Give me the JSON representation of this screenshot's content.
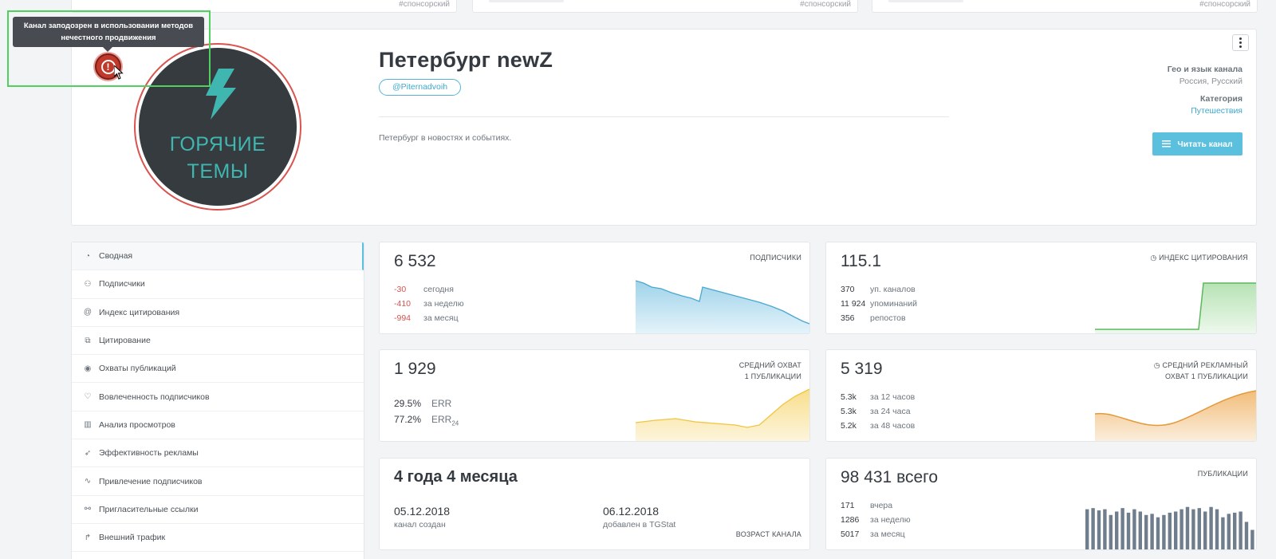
{
  "top_cards": [
    {
      "tag": "#спонсорский"
    },
    {
      "tag": "#спонсорский"
    },
    {
      "tag": "#спонсорский"
    }
  ],
  "tooltip": {
    "text": "Канал заподозрен в использовании методов нечестного продвижения"
  },
  "channel": {
    "title": "Петербург newZ",
    "handle": "@Piternadvoih",
    "description": "Петербург в новостях и событиях.",
    "avatar_text": [
      "ГОРЯЧИЕ",
      "ТЕМЫ"
    ],
    "geo_label": "Гео и язык канала",
    "geo_value": "Россия, Русский",
    "category_label": "Категория",
    "category_value": "Путешествия",
    "read_button": "Читать канал"
  },
  "nav": [
    {
      "label": "Сводная",
      "icon": "gauge-icon",
      "active": true
    },
    {
      "label": "Подписчики",
      "icon": "users-icon"
    },
    {
      "label": "Индекс цитирования",
      "icon": "at-icon"
    },
    {
      "label": "Цитирование",
      "icon": "quote-icon"
    },
    {
      "label": "Охваты публикаций",
      "icon": "eye-icon"
    },
    {
      "label": "Вовлеченность подписчиков",
      "icon": "heart-icon"
    },
    {
      "label": "Анализ просмотров",
      "icon": "bar-chart-icon"
    },
    {
      "label": "Эффективность рекламы",
      "icon": "rocket-icon"
    },
    {
      "label": "Привлечение подписчиков",
      "icon": "trend-icon"
    },
    {
      "label": "Пригласительные ссылки",
      "icon": "link-icon"
    },
    {
      "label": "Внешний трафик",
      "icon": "share-icon"
    }
  ],
  "stats": {
    "subscribers": {
      "value": "6 532",
      "label": "ПОДПИСЧИКИ",
      "rows": [
        {
          "n": "-30",
          "d": "сегодня"
        },
        {
          "n": "-410",
          "d": "за неделю"
        },
        {
          "n": "-994",
          "d": "за месяц"
        }
      ]
    },
    "citation": {
      "value": "115.1",
      "label": "ИНДЕКС ЦИТИРОВАНИЯ",
      "rows": [
        {
          "n": "370",
          "d": "уп. каналов"
        },
        {
          "n": "11 924",
          "d": "упоминаний"
        },
        {
          "n": "356",
          "d": "репостов"
        }
      ]
    },
    "reach": {
      "value": "1 929",
      "label_1": "СРЕДНИЙ ОХВАТ",
      "label_2": "1 ПУБЛИКАЦИИ",
      "rows": [
        {
          "n": "29.5%",
          "d": "ERR"
        },
        {
          "n": "77.2%",
          "d": "ERR",
          "sub": "24"
        }
      ]
    },
    "ad_reach": {
      "value": "5 319",
      "label_1": "СРЕДНИЙ РЕКЛАМНЫЙ",
      "label_2": "ОХВАТ 1 ПУБЛИКАЦИИ",
      "rows": [
        {
          "n": "5.3k",
          "d": "за 12 часов"
        },
        {
          "n": "5.3k",
          "d": "за 24 часа"
        },
        {
          "n": "5.2k",
          "d": "за 48 часов"
        }
      ]
    },
    "age": {
      "value": "4 года 4 месяца",
      "label": "ВОЗРАСТ КАНАЛА",
      "created_date": "05.12.2018",
      "created_label": "канал создан",
      "added_date": "06.12.2018",
      "added_label": "добавлен в TGStat"
    },
    "posts": {
      "value": "98 431",
      "value_suffix": "всего",
      "label": "ПУБЛИКАЦИИ",
      "rows": [
        {
          "n": "171",
          "d": "вчера"
        },
        {
          "n": "1286",
          "d": "за неделю"
        },
        {
          "n": "5017",
          "d": "за месяц"
        }
      ]
    }
  },
  "colors": {
    "accent": "#5bc0de",
    "negative": "#d9534f",
    "subs_chart": "#4aa8cf",
    "citation_chart": "#5cb85c",
    "reach_chart": "#f0c541",
    "ad_chart": "#e39a3a",
    "posts_chart": "#6f7d8c"
  }
}
